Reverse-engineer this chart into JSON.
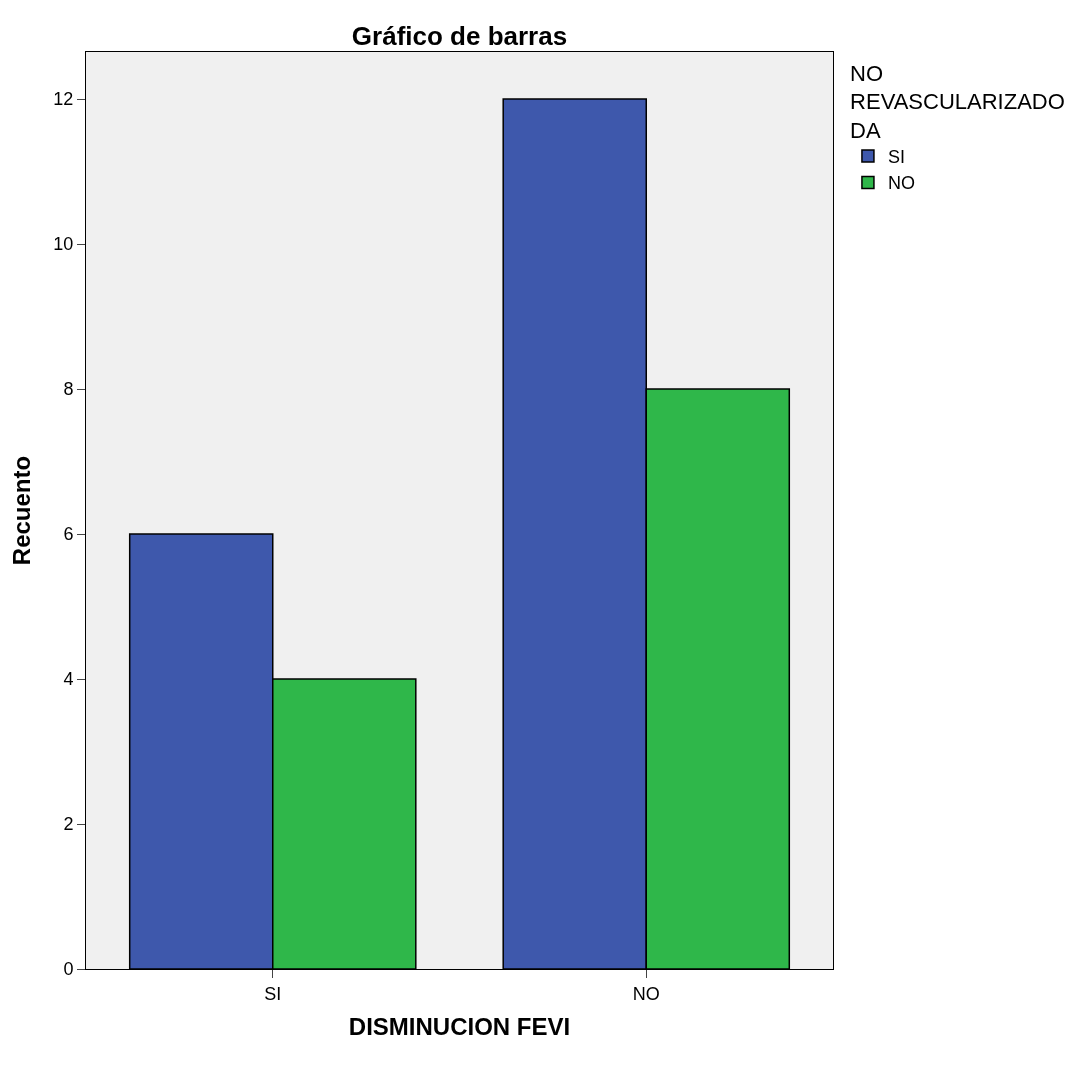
{
  "chart_data": {
    "type": "bar",
    "title": "Gráfico de barras",
    "xlabel": "DISMINUCION FEVI",
    "ylabel": "Recuento",
    "legend_title": "NO\nREVASCULARIZADO\nDA",
    "categories": [
      "SI",
      "NO"
    ],
    "series": [
      {
        "name": "SI",
        "color": "#3e58ac",
        "values": [
          6,
          12
        ]
      },
      {
        "name": "NO",
        "color": "#2fb74a",
        "values": [
          4,
          8
        ]
      }
    ],
    "ylim": [
      0,
      12.65
    ],
    "yticks": [
      0,
      2,
      4,
      6,
      8,
      10,
      12
    ],
    "grid": false,
    "legend": "top right"
  }
}
